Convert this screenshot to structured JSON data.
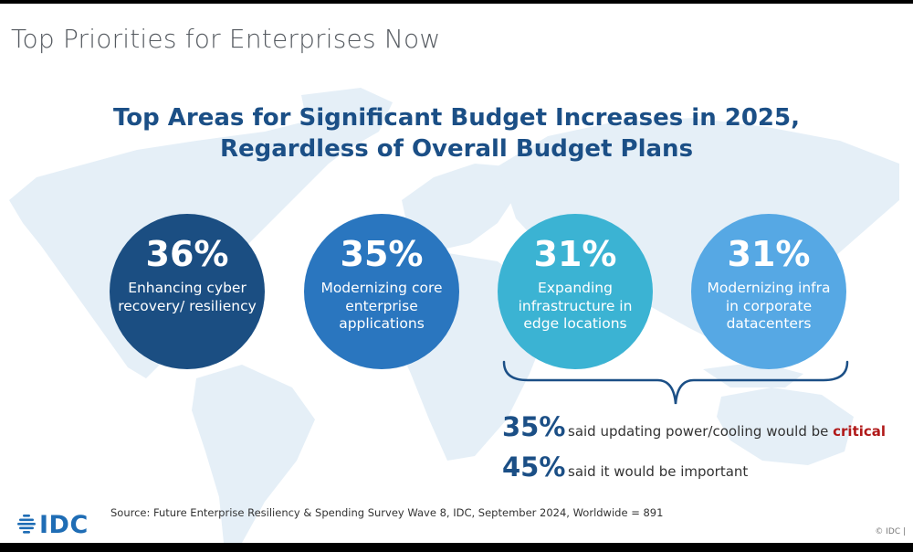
{
  "slide": {
    "title": "Top Priorities for Enterprises Now",
    "headline_line1": "Top Areas for Significant Budget Increases in 2025,",
    "headline_line2": "Regardless of Overall Budget Plans"
  },
  "circles": [
    {
      "percent": "36%",
      "label": "Enhancing cyber recovery/ resiliency",
      "color": "#1b4e82"
    },
    {
      "percent": "35%",
      "label": "Modernizing core enterprise applications",
      "color": "#2a76bf"
    },
    {
      "percent": "31%",
      "label": "Expanding infrastructure in edge locations",
      "color": "#3bb3d3"
    },
    {
      "percent": "31%",
      "label": "Modernizing infra in corporate datacenters",
      "color": "#56a8e4"
    }
  ],
  "stats": [
    {
      "value": "35%",
      "text_prefix": "said updating power/cooling would be ",
      "emphasis": "critical"
    },
    {
      "value": "45%",
      "text_prefix": "said it would be important"
    }
  ],
  "footer": {
    "logo_text": "IDC",
    "source": "Source: Future Enterprise Resiliency & Spending Survey Wave 8, IDC, September 2024, Worldwide = 891",
    "copyright": "© IDC |"
  },
  "colors": {
    "headline": "#1b4f86",
    "critical": "#b11a1a",
    "map": "#e4eff7"
  }
}
